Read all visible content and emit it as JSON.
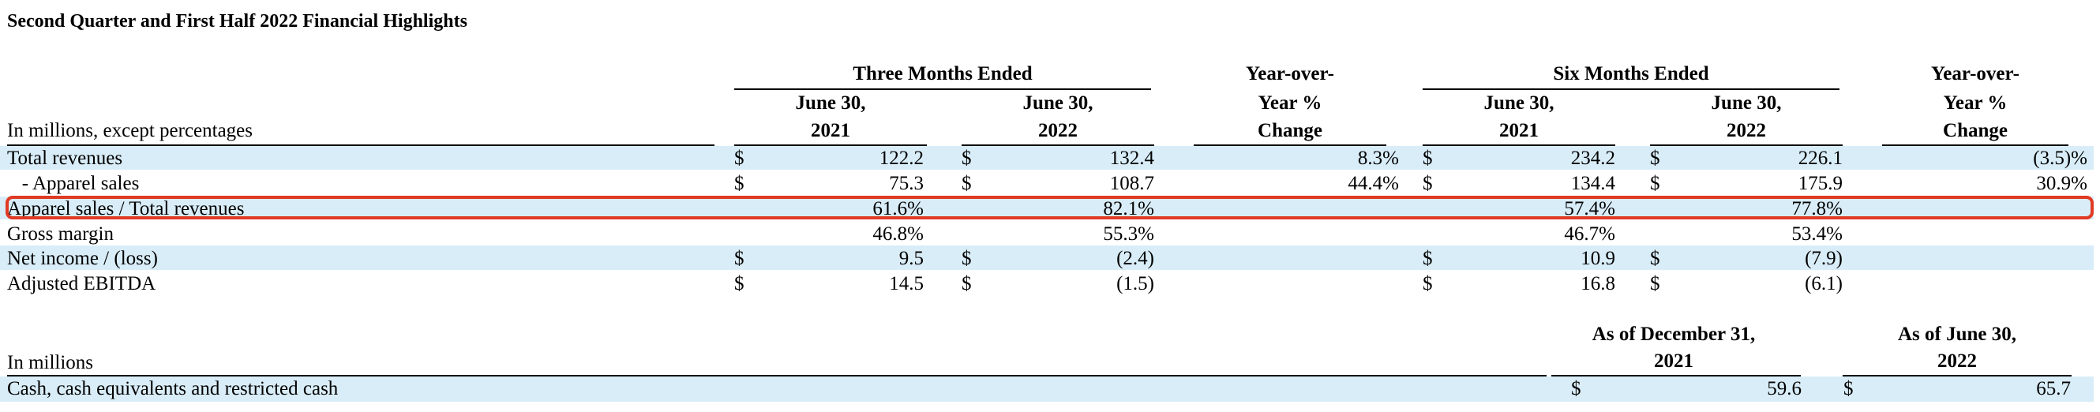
{
  "title": "Second Quarter and First Half 2022 Financial Highlights",
  "header": {
    "three_months": "Three Months Ended",
    "six_months": "Six Months Ended",
    "yoy_line1": "Year-over-",
    "yoy_line2": "Year %",
    "yoy_line3": "Change",
    "col_date_2021_line1": "June 30,",
    "col_date_2021_line2": "2021",
    "col_date_2022_line1": "June 30,",
    "col_date_2022_line2": "2022",
    "units_label": "In millions,  except percentages"
  },
  "rows": [
    {
      "label": "Total revenues",
      "q2021": {
        "dollar": "$",
        "value": "122.2"
      },
      "q2022": {
        "dollar": "$",
        "value": "132.4"
      },
      "q_change": "8.3%",
      "h2021": {
        "dollar": "$",
        "value": "234.2"
      },
      "h2022": {
        "dollar": "$",
        "value": "226.1"
      },
      "h_change": "(3.5)%"
    },
    {
      "label": "   - Apparel sales",
      "q2021": {
        "dollar": "$",
        "value": "75.3"
      },
      "q2022": {
        "dollar": "$",
        "value": "108.7"
      },
      "q_change": "44.4%",
      "h2021": {
        "dollar": "$",
        "value": "134.4"
      },
      "h2022": {
        "dollar": "$",
        "value": "175.9"
      },
      "h_change": "30.9%"
    },
    {
      "label": "Apparel sales / Total revenues",
      "q2021": {
        "dollar": "",
        "value": "61.6%"
      },
      "q2022": {
        "dollar": "",
        "value": "82.1%"
      },
      "q_change": "",
      "h2021": {
        "dollar": "",
        "value": "57.4%"
      },
      "h2022": {
        "dollar": "",
        "value": "77.8%"
      },
      "h_change": ""
    },
    {
      "label": "Gross margin",
      "q2021": {
        "dollar": "",
        "value": "46.8%"
      },
      "q2022": {
        "dollar": "",
        "value": "55.3%"
      },
      "q_change": "",
      "h2021": {
        "dollar": "",
        "value": "46.7%"
      },
      "h2022": {
        "dollar": "",
        "value": "53.4%"
      },
      "h_change": ""
    },
    {
      "label": "Net income / (loss)",
      "q2021": {
        "dollar": "$",
        "value": "9.5"
      },
      "q2022": {
        "dollar": "$",
        "value": "(2.4)"
      },
      "q_change": "",
      "h2021": {
        "dollar": "$",
        "value": "10.9"
      },
      "h2022": {
        "dollar": "$",
        "value": "(7.9)"
      },
      "h_change": ""
    },
    {
      "label": "Adjusted EBITDA",
      "q2021": {
        "dollar": "$",
        "value": "14.5"
      },
      "q2022": {
        "dollar": "$",
        "value": "(1.5)"
      },
      "q_change": "",
      "h2021": {
        "dollar": "$",
        "value": "16.8"
      },
      "h2022": {
        "dollar": "$",
        "value": "(6.1)"
      },
      "h_change": ""
    }
  ],
  "cash_table": {
    "units_label": "In millions",
    "col1_line1": "As of  December 31,",
    "col1_line2": "2021",
    "col2_line1": "As of  June 30,",
    "col2_line2": "2022",
    "row_label": "Cash, cash equivalents and restricted cash",
    "col1": {
      "dollar": "$",
      "value": "59.6"
    },
    "col2": {
      "dollar": "$",
      "value": "65.7"
    }
  },
  "colors": {
    "row_band": "#d9edf8",
    "highlight_border": "#e03a25"
  }
}
